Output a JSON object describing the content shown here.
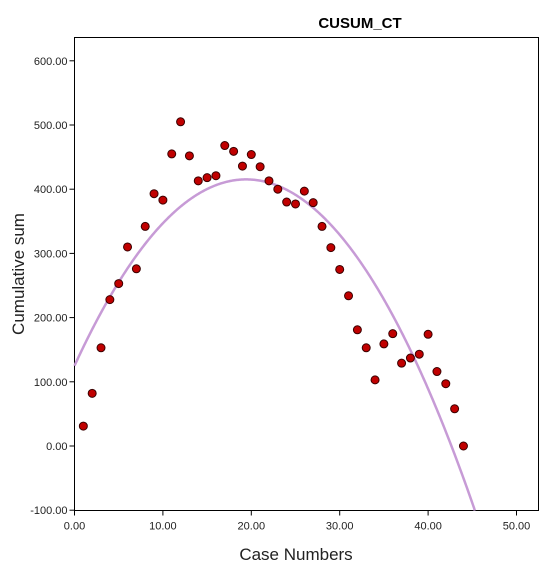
{
  "chart_data": {
    "type": "scatter",
    "title": "CUSUM_CT",
    "xlabel": "Case Numbers",
    "ylabel": "Cumulative sum",
    "xlim": [
      0,
      50
    ],
    "ylim": [
      -100,
      630
    ],
    "x_ticks": [
      0,
      10,
      20,
      30,
      40,
      50
    ],
    "x_tick_labels": [
      "0.00",
      "10.00",
      "20.00",
      "30.00",
      "40.00",
      "50.00"
    ],
    "y_ticks": [
      -100,
      0,
      100,
      200,
      300,
      400,
      500,
      600
    ],
    "y_tick_labels": [
      "-100.00",
      "0.00",
      "100.00",
      "200.00",
      "300.00",
      "400.00",
      "500.00",
      "600.00"
    ],
    "grid": false,
    "point_color": "#c00000",
    "point_edge_color": "#3a0000",
    "fit_color": "#c79bd6",
    "points": {
      "x": [
        1,
        2,
        3,
        4,
        5,
        6,
        7,
        8,
        9,
        10,
        11,
        12,
        13,
        14,
        15,
        16,
        17,
        18,
        19,
        20,
        21,
        22,
        23,
        24,
        25,
        26,
        27,
        28,
        29,
        30,
        31,
        32,
        33,
        34,
        35,
        36,
        37,
        38,
        39,
        40,
        41,
        42,
        43,
        44
      ],
      "y": [
        31,
        82,
        153,
        228,
        253,
        310,
        276,
        342,
        393,
        383,
        455,
        505,
        452,
        413,
        418,
        421,
        468,
        459,
        436,
        454,
        435,
        413,
        400,
        380,
        377,
        397,
        379,
        342,
        309,
        275,
        234,
        181,
        153,
        103,
        159,
        175,
        129,
        137,
        143,
        174,
        116,
        97,
        58,
        0
      ]
    },
    "fit": {
      "type": "quadratic",
      "coefficients": [
        125,
        29.9,
        -0.77
      ]
    }
  }
}
